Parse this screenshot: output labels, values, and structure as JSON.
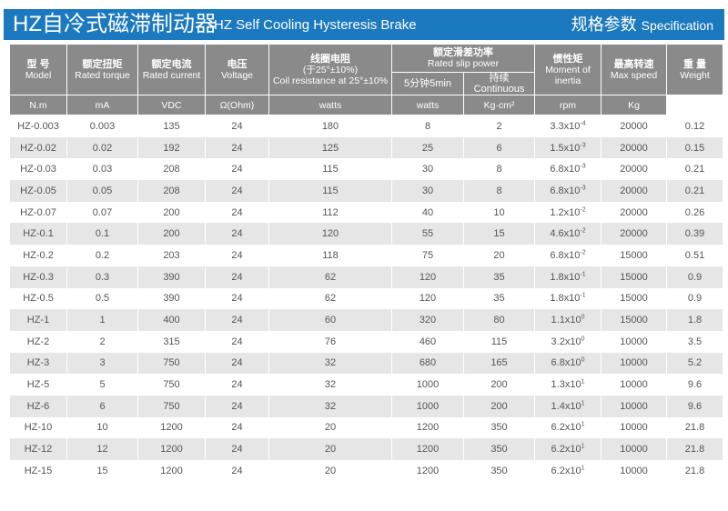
{
  "title": {
    "cn": "HZ自冷式磁滞制动器",
    "en": "HZ Self Cooling Hysteresis Brake",
    "spec_cn": "规格参数",
    "spec_en": "Specification"
  },
  "headers": {
    "model": {
      "cn": "型 号",
      "en": "Model"
    },
    "torque": {
      "cn": "额定扭矩",
      "en": "Rated torque",
      "unit": "N.m"
    },
    "current": {
      "cn": "额定电流",
      "en": "Rated current",
      "unit": "mA"
    },
    "voltage": {
      "cn": "电压",
      "en": "Voltage",
      "unit": "VDC"
    },
    "resistance": {
      "cn": "线圈电阻",
      "cn2": "(于25°±10%)",
      "en": "Coil resistance at 25°±10%",
      "unit": "Ω(Ohm)"
    },
    "slip": {
      "cn": "额定滑差功率",
      "en": "Rated slip power",
      "sub1": "5分钟5min",
      "sub2": "持续Continuous",
      "unit1": "watts",
      "unit2": "watts"
    },
    "inertia": {
      "cn": "惯性矩",
      "en1": "Moment of",
      "en2": "inertia",
      "unit": "Kg·cm²"
    },
    "speed": {
      "cn": "最高转速",
      "en": "Max speed",
      "unit": "rpm"
    },
    "weight": {
      "cn": "重 量",
      "en": "Weight",
      "unit": "Kg"
    }
  },
  "colors": {
    "title_bar": "#1b79c0",
    "header": "#8a8a8a",
    "row_alt": "#e6e6e6"
  },
  "rows": [
    {
      "model": "HZ-0.003",
      "torque": "0.003",
      "current": "135",
      "voltage": "24",
      "resistance": "180",
      "slip5": "8",
      "slipc": "2",
      "inertia_m": "3.3x10",
      "inertia_e": "-4",
      "speed": "20000",
      "weight": "0.12"
    },
    {
      "model": "HZ-0.02",
      "torque": "0.02",
      "current": "192",
      "voltage": "24",
      "resistance": "125",
      "slip5": "25",
      "slipc": "6",
      "inertia_m": "1.5x10",
      "inertia_e": "-3",
      "speed": "20000",
      "weight": "0.15"
    },
    {
      "model": "HZ-0.03",
      "torque": "0.03",
      "current": "208",
      "voltage": "24",
      "resistance": "115",
      "slip5": "30",
      "slipc": "8",
      "inertia_m": "6.8x10",
      "inertia_e": "-3",
      "speed": "20000",
      "weight": "0.21"
    },
    {
      "model": "HZ-0.05",
      "torque": "0.05",
      "current": "208",
      "voltage": "24",
      "resistance": "115",
      "slip5": "30",
      "slipc": "8",
      "inertia_m": "6.8x10",
      "inertia_e": "-3",
      "speed": "20000",
      "weight": "0.21"
    },
    {
      "model": "HZ-0.07",
      "torque": "0.07",
      "current": "200",
      "voltage": "24",
      "resistance": "112",
      "slip5": "40",
      "slipc": "10",
      "inertia_m": "1.2x10",
      "inertia_e": "-2",
      "speed": "20000",
      "weight": "0.26"
    },
    {
      "model": "HZ-0.1",
      "torque": "0.1",
      "current": "200",
      "voltage": "24",
      "resistance": "120",
      "slip5": "55",
      "slipc": "15",
      "inertia_m": "4.6x10",
      "inertia_e": "-2",
      "speed": "20000",
      "weight": "0.39"
    },
    {
      "model": "HZ-0.2",
      "torque": "0.2",
      "current": "203",
      "voltage": "24",
      "resistance": "118",
      "slip5": "75",
      "slipc": "20",
      "inertia_m": "6.8x10",
      "inertia_e": "-2",
      "speed": "15000",
      "weight": "0.51"
    },
    {
      "model": "HZ-0.3",
      "torque": "0.3",
      "current": "390",
      "voltage": "24",
      "resistance": "62",
      "slip5": "120",
      "slipc": "35",
      "inertia_m": "1.8x10",
      "inertia_e": "-1",
      "speed": "15000",
      "weight": "0.9"
    },
    {
      "model": "HZ-0.5",
      "torque": "0.5",
      "current": "390",
      "voltage": "24",
      "resistance": "62",
      "slip5": "120",
      "slipc": "35",
      "inertia_m": "1.8x10",
      "inertia_e": "-1",
      "speed": "15000",
      "weight": "0.9"
    },
    {
      "model": "HZ-1",
      "torque": "1",
      "current": "400",
      "voltage": "24",
      "resistance": "60",
      "slip5": "320",
      "slipc": "80",
      "inertia_m": "1.1x10",
      "inertia_e": "0",
      "speed": "15000",
      "weight": "1.8"
    },
    {
      "model": "HZ-2",
      "torque": "2",
      "current": "315",
      "voltage": "24",
      "resistance": "76",
      "slip5": "460",
      "slipc": "115",
      "inertia_m": "3.2x10",
      "inertia_e": "0",
      "speed": "10000",
      "weight": "3.5"
    },
    {
      "model": "HZ-3",
      "torque": "3",
      "current": "750",
      "voltage": "24",
      "resistance": "32",
      "slip5": "680",
      "slipc": "165",
      "inertia_m": "6.8x10",
      "inertia_e": "0",
      "speed": "10000",
      "weight": "5.2"
    },
    {
      "model": "HZ-5",
      "torque": "5",
      "current": "750",
      "voltage": "24",
      "resistance": "32",
      "slip5": "1000",
      "slipc": "200",
      "inertia_m": "1.3x10",
      "inertia_e": "1",
      "speed": "10000",
      "weight": "9.6"
    },
    {
      "model": "HZ-6",
      "torque": "6",
      "current": "750",
      "voltage": "24",
      "resistance": "32",
      "slip5": "1000",
      "slipc": "200",
      "inertia_m": "1.4x10",
      "inertia_e": "1",
      "speed": "10000",
      "weight": "9.6"
    },
    {
      "model": "HZ-10",
      "torque": "10",
      "current": "1200",
      "voltage": "24",
      "resistance": "20",
      "slip5": "1200",
      "slipc": "350",
      "inertia_m": "6.2x10",
      "inertia_e": "1",
      "speed": "10000",
      "weight": "21.8"
    },
    {
      "model": "HZ-12",
      "torque": "12",
      "current": "1200",
      "voltage": "24",
      "resistance": "20",
      "slip5": "1200",
      "slipc": "350",
      "inertia_m": "6.2x10",
      "inertia_e": "1",
      "speed": "10000",
      "weight": "21.8"
    },
    {
      "model": "HZ-15",
      "torque": "15",
      "current": "1200",
      "voltage": "24",
      "resistance": "20",
      "slip5": "1200",
      "slipc": "350",
      "inertia_m": "6.2x10",
      "inertia_e": "1",
      "speed": "10000",
      "weight": "21.8"
    }
  ]
}
